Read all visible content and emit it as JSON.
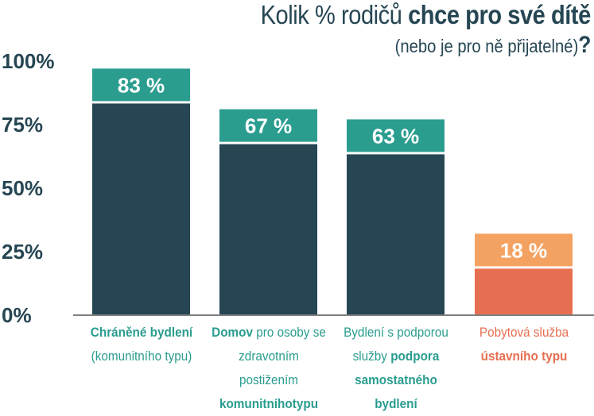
{
  "header": {
    "title_regular": "Kolik % rodičů ",
    "title_bold": "chce pro své dítě",
    "subtitle": "(nebo je pro ně přijatelné)",
    "subtitle_mark": "?"
  },
  "colors": {
    "dark": "#264653",
    "teal": "#2a9d8f",
    "orange": "#f4a261",
    "red": "#e76f51"
  },
  "chart_data": {
    "type": "bar",
    "title": "Kolik % rodičů chce pro své dítě (nebo je pro ně přijatelné)?",
    "ylim": [
      0,
      100
    ],
    "yticks": [
      "0%",
      "25%",
      "50%",
      "75%",
      "100%"
    ],
    "values": [
      83,
      67,
      63,
      18
    ],
    "data_labels": [
      "83 %",
      "67 %",
      "63 %",
      "18 %"
    ],
    "categories": [
      {
        "parts": [
          {
            "t": "Chráněné bydlení",
            "b": true
          },
          {
            "t": "(komunitního typu)",
            "b": false
          }
        ],
        "color": "teal"
      },
      {
        "parts": [
          {
            "t": "Domov",
            "b": true
          },
          {
            "t": " pro osoby se zdravotním postižením ",
            "b": false
          },
          {
            "t": "komunitníhotypu",
            "b": true
          }
        ],
        "color": "teal"
      },
      {
        "parts": [
          {
            "t": "Bydlení s podporou služby ",
            "b": false
          },
          {
            "t": "podpora samostatného bydlení",
            "b": true
          }
        ],
        "color": "teal"
      },
      {
        "parts": [
          {
            "t": "Pobytová služba ",
            "b": false
          },
          {
            "t": "ústavního typu",
            "b": true
          }
        ],
        "color": "red"
      }
    ]
  }
}
